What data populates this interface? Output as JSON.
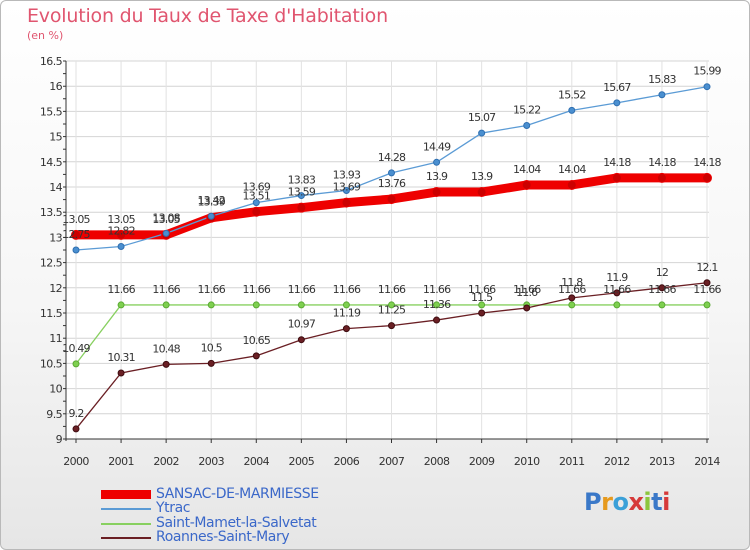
{
  "title": "Evolution du Taux de Taxe d'Habitation",
  "unit_label": "(en %)",
  "logo_text": "Proxiti",
  "chart_data": {
    "type": "line",
    "title": "Evolution du Taux de Taxe d'Habitation",
    "ylabel": "(en %)",
    "x": [
      2000,
      2001,
      2002,
      2003,
      2004,
      2005,
      2006,
      2007,
      2008,
      2009,
      2010,
      2011,
      2012,
      2013,
      2014
    ],
    "ylim": [
      9,
      16.5
    ],
    "yticks": [
      9,
      9.5,
      10,
      10.5,
      11,
      11.5,
      12,
      12.5,
      13,
      13.5,
      14,
      14.5,
      15,
      15.5,
      16,
      16.5
    ],
    "grid": true,
    "legend_position": "bottom-left",
    "series": [
      {
        "name": "SANSAC-DE-MARMIESSE",
        "color": "#ee0000",
        "values": [
          13.05,
          13.05,
          13.05,
          13.39,
          13.51,
          13.59,
          13.69,
          13.76,
          13.9,
          13.9,
          14.04,
          14.04,
          14.18,
          14.18,
          14.18
        ]
      },
      {
        "name": "Ytrac",
        "color": "#5b9bd5",
        "values": [
          12.75,
          12.82,
          13.08,
          13.42,
          13.69,
          13.83,
          13.93,
          14.28,
          14.49,
          15.07,
          15.22,
          15.52,
          15.67,
          15.83,
          15.99
        ]
      },
      {
        "name": "Saint-Mamet-la-Salvetat",
        "color": "#88d060",
        "values": [
          10.49,
          11.66,
          11.66,
          11.66,
          11.66,
          11.66,
          11.66,
          11.66,
          11.66,
          11.66,
          11.66,
          11.66,
          11.66,
          11.66,
          11.66
        ]
      },
      {
        "name": "Roannes-Saint-Mary",
        "color": "#6a1f24",
        "values": [
          9.2,
          10.31,
          10.48,
          10.5,
          10.65,
          10.97,
          11.19,
          11.25,
          11.36,
          11.5,
          11.6,
          11.8,
          11.9,
          12,
          12.1
        ]
      }
    ]
  }
}
